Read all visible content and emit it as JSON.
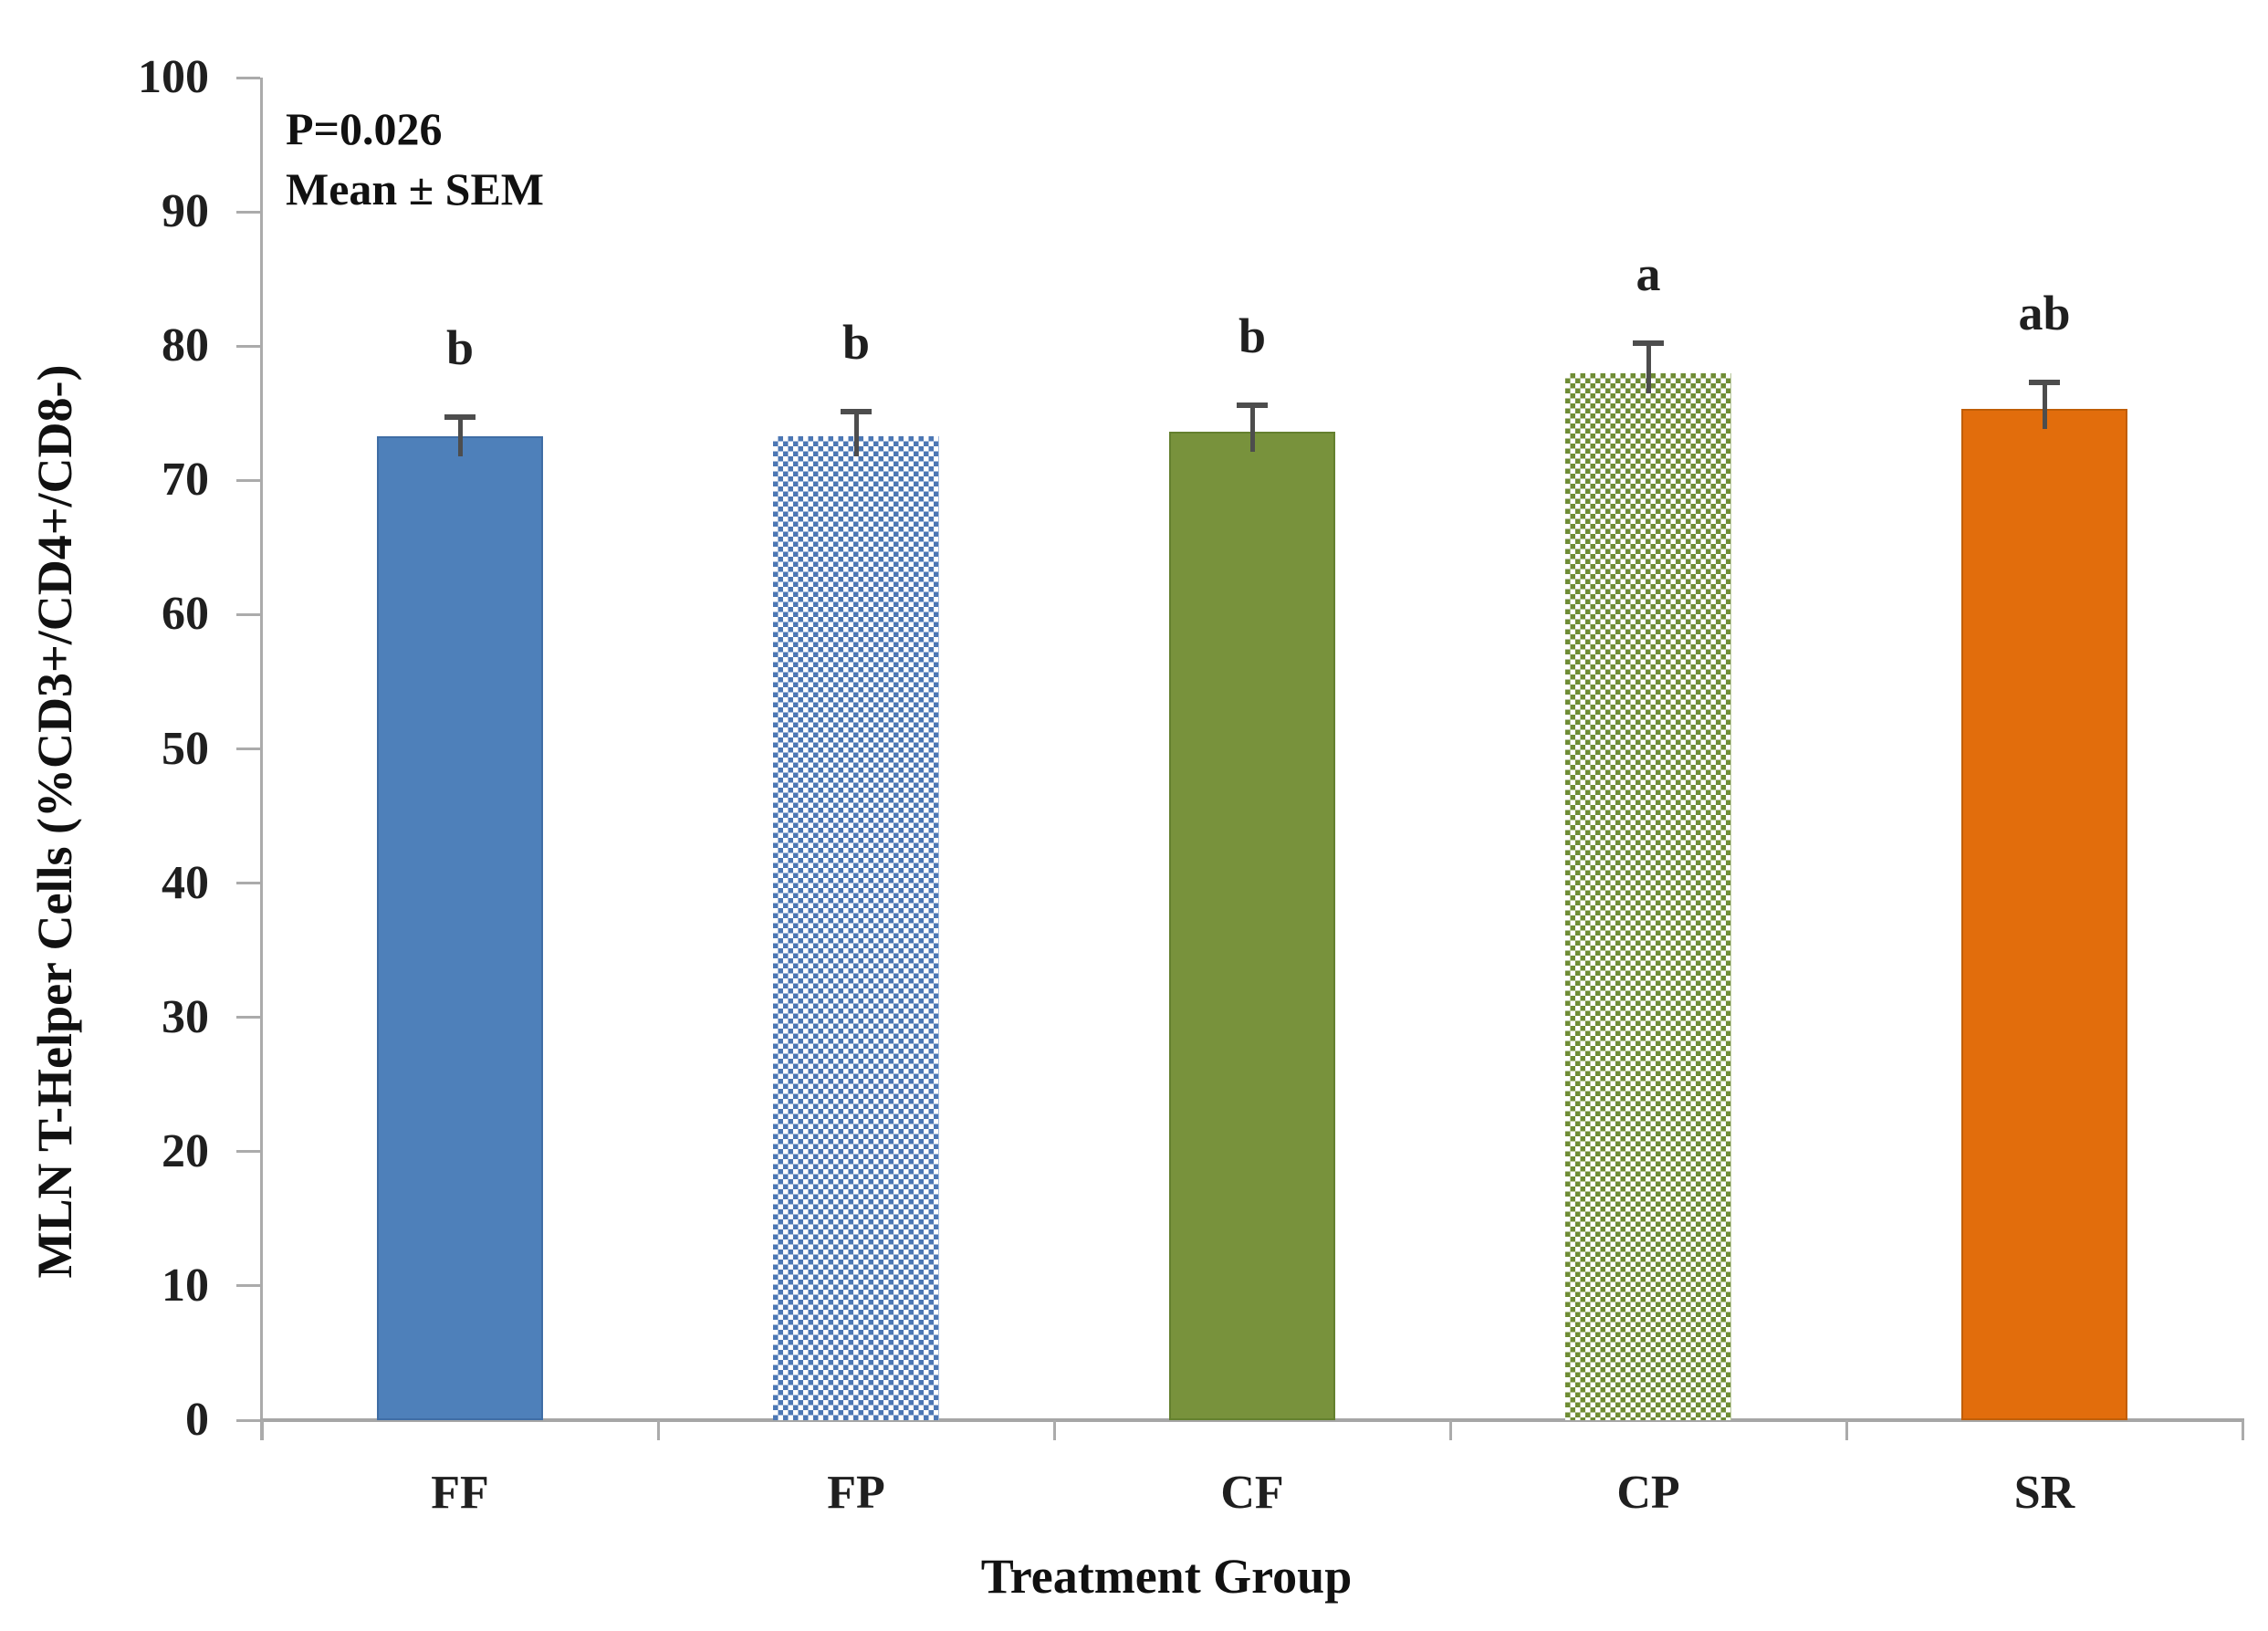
{
  "chart_data": {
    "type": "bar",
    "title": "",
    "xlabel": "Treatment Group",
    "ylabel": "MLN T-Helper Cells (%CD3+/CD4+/CD8-)",
    "ylim": [
      0,
      100
    ],
    "ytick_step": 10,
    "yticks": [
      0,
      10,
      20,
      30,
      40,
      50,
      60,
      70,
      80,
      90,
      100
    ],
    "grid": false,
    "legend": "none",
    "annotations": {
      "p_value": "P=0.026",
      "mean_sem": "Mean ± SEM"
    },
    "categories": [
      "FF",
      "FP",
      "CF",
      "CP",
      "SR"
    ],
    "series": [
      {
        "name": "MLN T-Helper Cells",
        "values": [
          73.3,
          73.3,
          73.6,
          78.0,
          75.3
        ],
        "sem": [
          1.2,
          1.6,
          1.8,
          2.0,
          1.8
        ],
        "sig_letters": [
          "b",
          "b",
          "b",
          "a",
          "ab"
        ]
      }
    ],
    "bar_styles": [
      {
        "fill": "solid",
        "color": "#4E80BA",
        "border": "#3f6da5"
      },
      {
        "fill": "checker",
        "color": "#4C77B4",
        "bg": "#ffffff"
      },
      {
        "fill": "solid",
        "color": "#78923C",
        "border": "#64802f"
      },
      {
        "fill": "checker",
        "color": "#6F8C35",
        "bg": "#ffffff"
      },
      {
        "fill": "solid",
        "color": "#E26D0C",
        "border": "#c05e07"
      }
    ],
    "colors": {
      "axis_line": "#a6a6a6",
      "tick_line": "#ababab",
      "error_bar": "#4d4d4d",
      "text": "#1f1f1f"
    }
  }
}
